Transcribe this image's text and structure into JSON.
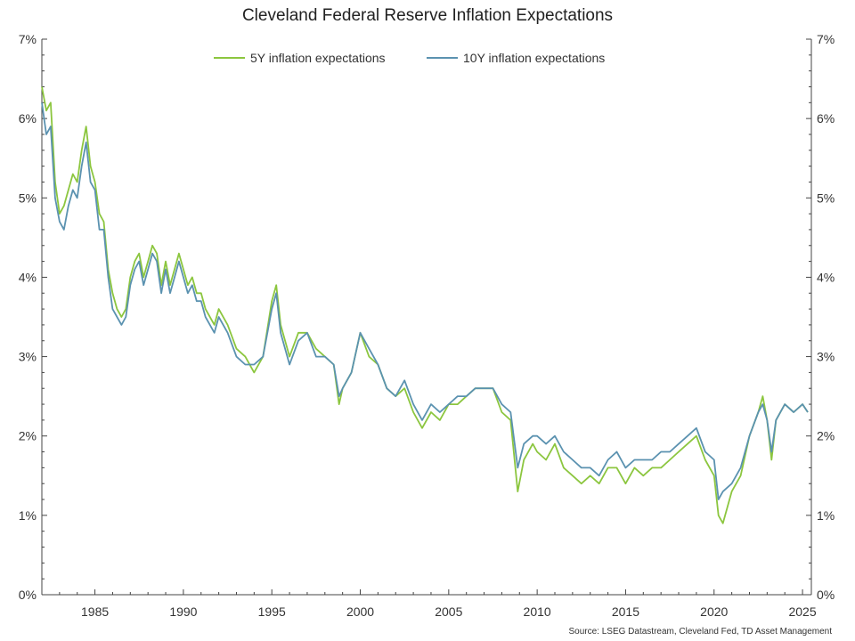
{
  "chart_data": {
    "type": "line",
    "title": "Cleveland Federal Reserve Inflation Expectations",
    "source": "Source: LSEG Datastream, Cleveland Fed, TD Asset Management",
    "xlim": [
      1982.0,
      2025.5
    ],
    "ylim": [
      0,
      7
    ],
    "x_ticks": [
      1985,
      1990,
      1995,
      2000,
      2005,
      2010,
      2015,
      2020,
      2025
    ],
    "x_tick_labels": [
      "1985",
      "1990",
      "1995",
      "2000",
      "2005",
      "2010",
      "2015",
      "2020",
      "2025"
    ],
    "y_ticks": [
      0,
      1,
      2,
      3,
      4,
      5,
      6,
      7
    ],
    "y_tick_labels": [
      "0%",
      "1%",
      "2%",
      "3%",
      "4%",
      "5%",
      "6%",
      "7%"
    ],
    "legend_position": "top-center",
    "grid": false,
    "series": [
      {
        "name": "5Y inflation expectations",
        "color": "#8cc63f",
        "x": [
          1982.0,
          1982.25,
          1982.5,
          1982.75,
          1983.0,
          1983.25,
          1983.5,
          1983.75,
          1984.0,
          1984.25,
          1984.5,
          1984.75,
          1985.0,
          1985.25,
          1985.5,
          1985.75,
          1986.0,
          1986.25,
          1986.5,
          1986.75,
          1987.0,
          1987.25,
          1987.5,
          1987.75,
          1988.0,
          1988.25,
          1988.5,
          1988.75,
          1989.0,
          1989.25,
          1989.5,
          1989.75,
          1990.0,
          1990.25,
          1990.5,
          1990.75,
          1991.0,
          1991.25,
          1991.5,
          1991.75,
          1992.0,
          1992.5,
          1993.0,
          1993.5,
          1994.0,
          1994.5,
          1995.0,
          1995.25,
          1995.5,
          1996.0,
          1996.5,
          1997.0,
          1997.5,
          1998.0,
          1998.5,
          1998.8,
          1999.0,
          1999.5,
          2000.0,
          2000.5,
          2001.0,
          2001.5,
          2002.0,
          2002.5,
          2003.0,
          2003.5,
          2004.0,
          2004.5,
          2005.0,
          2005.5,
          2006.0,
          2006.5,
          2007.0,
          2007.5,
          2008.0,
          2008.5,
          2008.9,
          2009.25,
          2009.75,
          2010.0,
          2010.5,
          2011.0,
          2011.5,
          2012.0,
          2012.5,
          2013.0,
          2013.5,
          2014.0,
          2014.5,
          2015.0,
          2015.5,
          2016.0,
          2016.5,
          2017.0,
          2017.5,
          2018.0,
          2018.5,
          2019.0,
          2019.5,
          2020.0,
          2020.25,
          2020.5,
          2021.0,
          2021.5,
          2022.0,
          2022.5,
          2022.75,
          2023.0,
          2023.25,
          2023.5,
          2024.0,
          2024.5,
          2025.0,
          2025.3
        ],
        "y": [
          6.4,
          6.1,
          6.2,
          5.2,
          4.8,
          4.9,
          5.1,
          5.3,
          5.2,
          5.6,
          5.9,
          5.4,
          5.2,
          4.8,
          4.7,
          4.1,
          3.8,
          3.6,
          3.5,
          3.6,
          4.0,
          4.2,
          4.3,
          4.0,
          4.2,
          4.4,
          4.3,
          3.9,
          4.2,
          3.9,
          4.1,
          4.3,
          4.1,
          3.9,
          4.0,
          3.8,
          3.8,
          3.6,
          3.5,
          3.4,
          3.6,
          3.4,
          3.1,
          3.0,
          2.8,
          3.0,
          3.7,
          3.9,
          3.4,
          3.0,
          3.3,
          3.3,
          3.1,
          3.0,
          2.9,
          2.4,
          2.6,
          2.8,
          3.3,
          3.0,
          2.9,
          2.6,
          2.5,
          2.6,
          2.3,
          2.1,
          2.3,
          2.2,
          2.4,
          2.4,
          2.5,
          2.6,
          2.6,
          2.6,
          2.3,
          2.2,
          1.3,
          1.7,
          1.9,
          1.8,
          1.7,
          1.9,
          1.6,
          1.5,
          1.4,
          1.5,
          1.4,
          1.6,
          1.6,
          1.4,
          1.6,
          1.5,
          1.6,
          1.6,
          1.7,
          1.8,
          1.9,
          2.0,
          1.7,
          1.5,
          1.0,
          0.9,
          1.3,
          1.5,
          2.0,
          2.3,
          2.5,
          2.2,
          1.7,
          2.2,
          2.4,
          2.3,
          2.4,
          2.3
        ]
      },
      {
        "name": "10Y inflation expectations",
        "color": "#5b92b0",
        "x": [
          1982.0,
          1982.25,
          1982.5,
          1982.75,
          1983.0,
          1983.25,
          1983.5,
          1983.75,
          1984.0,
          1984.25,
          1984.5,
          1984.75,
          1985.0,
          1985.25,
          1985.5,
          1985.75,
          1986.0,
          1986.25,
          1986.5,
          1986.75,
          1987.0,
          1987.25,
          1987.5,
          1987.75,
          1988.0,
          1988.25,
          1988.5,
          1988.75,
          1989.0,
          1989.25,
          1989.5,
          1989.75,
          1990.0,
          1990.25,
          1990.5,
          1990.75,
          1991.0,
          1991.25,
          1991.5,
          1991.75,
          1992.0,
          1992.5,
          1993.0,
          1993.5,
          1994.0,
          1994.5,
          1995.0,
          1995.25,
          1995.5,
          1996.0,
          1996.5,
          1997.0,
          1997.5,
          1998.0,
          1998.5,
          1998.8,
          1999.0,
          1999.5,
          2000.0,
          2000.5,
          2001.0,
          2001.5,
          2002.0,
          2002.5,
          2003.0,
          2003.5,
          2004.0,
          2004.5,
          2005.0,
          2005.5,
          2006.0,
          2006.5,
          2007.0,
          2007.5,
          2008.0,
          2008.5,
          2008.9,
          2009.25,
          2009.75,
          2010.0,
          2010.5,
          2011.0,
          2011.5,
          2012.0,
          2012.5,
          2013.0,
          2013.5,
          2014.0,
          2014.5,
          2015.0,
          2015.5,
          2016.0,
          2016.5,
          2017.0,
          2017.5,
          2018.0,
          2018.5,
          2019.0,
          2019.5,
          2020.0,
          2020.25,
          2020.5,
          2021.0,
          2021.5,
          2022.0,
          2022.5,
          2022.75,
          2023.0,
          2023.25,
          2023.5,
          2024.0,
          2024.5,
          2025.0,
          2025.3
        ],
        "y": [
          6.2,
          5.8,
          5.9,
          5.0,
          4.7,
          4.6,
          4.9,
          5.1,
          5.0,
          5.4,
          5.7,
          5.2,
          5.1,
          4.6,
          4.6,
          4.0,
          3.6,
          3.5,
          3.4,
          3.5,
          3.9,
          4.1,
          4.2,
          3.9,
          4.1,
          4.3,
          4.2,
          3.8,
          4.1,
          3.8,
          4.0,
          4.2,
          4.0,
          3.8,
          3.9,
          3.7,
          3.7,
          3.5,
          3.4,
          3.3,
          3.5,
          3.3,
          3.0,
          2.9,
          2.9,
          3.0,
          3.6,
          3.8,
          3.3,
          2.9,
          3.2,
          3.3,
          3.0,
          3.0,
          2.9,
          2.5,
          2.6,
          2.8,
          3.3,
          3.1,
          2.9,
          2.6,
          2.5,
          2.7,
          2.4,
          2.2,
          2.4,
          2.3,
          2.4,
          2.5,
          2.5,
          2.6,
          2.6,
          2.6,
          2.4,
          2.3,
          1.6,
          1.9,
          2.0,
          2.0,
          1.9,
          2.0,
          1.8,
          1.7,
          1.6,
          1.6,
          1.5,
          1.7,
          1.8,
          1.6,
          1.7,
          1.7,
          1.7,
          1.8,
          1.8,
          1.9,
          2.0,
          2.1,
          1.8,
          1.7,
          1.2,
          1.3,
          1.4,
          1.6,
          2.0,
          2.3,
          2.4,
          2.2,
          1.8,
          2.2,
          2.4,
          2.3,
          2.4,
          2.3
        ]
      }
    ]
  }
}
